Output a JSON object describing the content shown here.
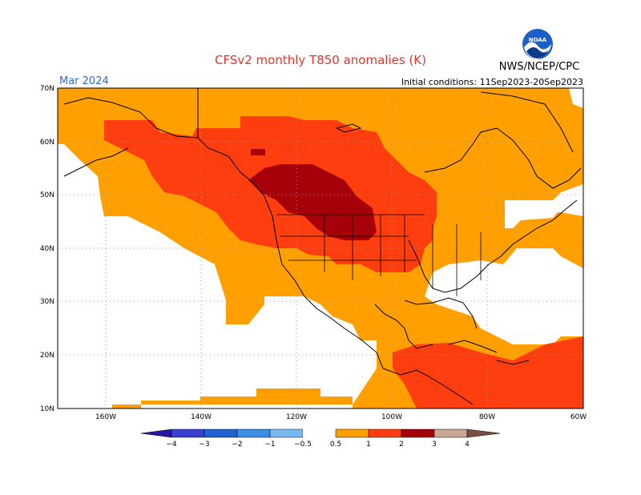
{
  "header": {
    "title": "CFSv2 monthly T850 anomalies (K)",
    "month": "Mar 2024",
    "agency": "NWS/NCEP/CPC",
    "initial_conditions": "Initial conditions: 11Sep2023-20Sep2023",
    "logo_label": "NOAA"
  },
  "axes": {
    "lat_labels": [
      "70N",
      "60N",
      "50N",
      "40N",
      "30N",
      "20N",
      "10N"
    ],
    "lon_labels": [
      "160W",
      "140W",
      "120W",
      "100W",
      "80W",
      "60W"
    ]
  },
  "legend": {
    "tick_labels": [
      "−4",
      "−3",
      "−2",
      "−1",
      "−0.5",
      "0.5",
      "1",
      "2",
      "3",
      "4"
    ],
    "colors": [
      "#2a16a6",
      "#3a3fd4",
      "#1f62d0",
      "#3c8ee6",
      "#79baf4",
      "#ffffff",
      "#ffa000",
      "#ff3e10",
      "#a60008",
      "#c9a696",
      "#7a4e42"
    ]
  },
  "colors": {
    "anom_0_5_1": "#ffa000",
    "anom_1_2": "#ff3e10",
    "anom_2_3": "#a60008",
    "grid": "#9a9a9a",
    "coast": "#000000"
  }
}
